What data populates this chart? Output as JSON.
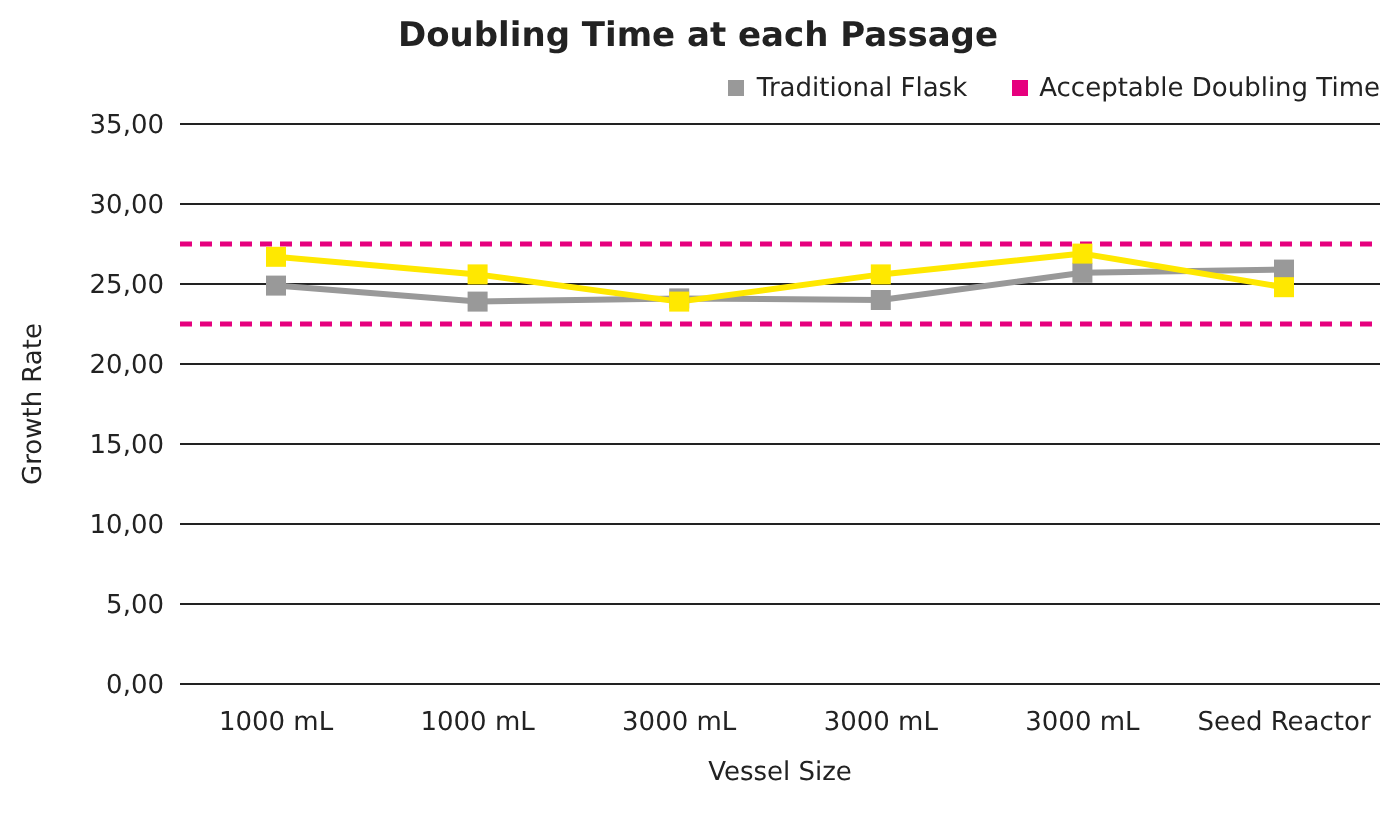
{
  "chart_data": {
    "type": "line",
    "title": "Doubling Time at each Passage",
    "xlabel": "Vessel Size",
    "ylabel": "Growth Rate",
    "categories": [
      "1000 mL",
      "1000 mL",
      "3000 mL",
      "3000 mL",
      "3000 mL",
      "Seed Reactor"
    ],
    "series": [
      {
        "color": "#ffe800",
        "values": [
          26.7,
          25.6,
          23.9,
          25.6,
          26.9,
          24.8
        ]
      },
      {
        "name": "Traditional Flask",
        "color": "#999999",
        "values": [
          24.9,
          23.9,
          24.1,
          24.0,
          25.7,
          25.9
        ]
      }
    ],
    "ref_lines": [
      {
        "axis": "y",
        "value": 27.5,
        "label": "Acceptable Doubling Time",
        "color": "#e6007e",
        "line_style": "dashed"
      },
      {
        "axis": "y",
        "value": 22.5,
        "color": "#e6007e",
        "line_style": "dashed"
      }
    ],
    "ylim": [
      0,
      35
    ],
    "yticks": [
      {
        "value": 0,
        "label": "0,00"
      },
      {
        "value": 5,
        "label": "5,00"
      },
      {
        "value": 10,
        "label": "10,00"
      },
      {
        "value": 15,
        "label": "15,00"
      },
      {
        "value": 20,
        "label": "20,00"
      },
      {
        "value": 25,
        "label": "25,00"
      },
      {
        "value": 30,
        "label": "30,00"
      },
      {
        "value": 35,
        "label": "35,00"
      }
    ],
    "grid": "y",
    "legend": "top right",
    "marker": "square",
    "line_style": "solid"
  }
}
